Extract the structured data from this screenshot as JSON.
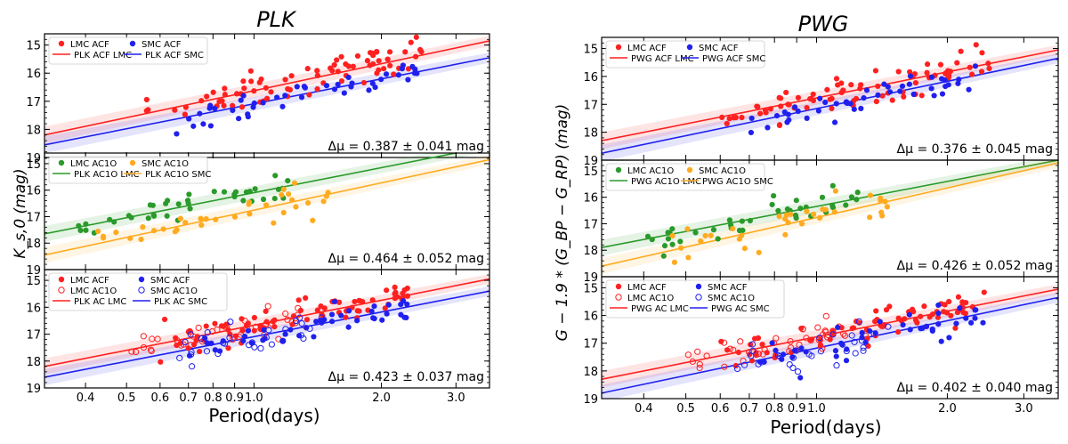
{
  "colors": {
    "lmc": "#ff2020",
    "smc": "#2020ee",
    "lmc_ac1o": "#2a9a2a",
    "smc_ac1o": "#ffab20"
  },
  "chart_data": [
    {
      "type": "scatter",
      "title": "PLK",
      "xlabel": "Period(days)",
      "ylabel": "K_s,0 (mag)",
      "x_scale": "log",
      "xlim": [
        0.32,
        3.6
      ],
      "x_ticks": [
        0.4,
        0.5,
        0.6,
        0.7,
        0.8,
        0.9,
        1.0,
        2.0,
        3.0
      ],
      "x_tick_labels": [
        "0.4",
        "0.5",
        "0.6",
        "0.7",
        "0.8",
        "0.9",
        "1.0",
        "2.0",
        "3.0"
      ],
      "panels": [
        {
          "ylim": [
            19,
            14.6
          ],
          "y_ticks": [
            15,
            16,
            17,
            18,
            19
          ],
          "delta_mu": "Δμ = 0.387 ± 0.041 mag",
          "legend": [
            {
              "label": "LMC ACF",
              "kind": "marker",
              "style": "filled",
              "color": "lmc"
            },
            {
              "label": "PLK ACF LMC",
              "kind": "line",
              "color": "lmc"
            },
            {
              "label": "SMC ACF",
              "kind": "marker",
              "style": "filled",
              "color": "smc"
            },
            {
              "label": "PLK ACF SMC",
              "kind": "line",
              "color": "smc"
            }
          ],
          "fits": [
            {
              "name": "PLK ACF LMC",
              "color": "lmc",
              "y_at_0.32": 18.2,
              "y_at_3.6": 14.85
            },
            {
              "name": "PLK ACF SMC",
              "color": "smc",
              "y_at_0.32": 18.55,
              "y_at_3.6": 15.45
            }
          ],
          "series": [
            {
              "name": "LMC ACF",
              "color": "lmc",
              "style": "filled",
              "n": 80,
              "x_range": [
                0.55,
                2.5
              ],
              "scatter_mag": 0.3,
              "fit": 0
            },
            {
              "name": "SMC ACF",
              "color": "smc",
              "style": "filled",
              "n": 45,
              "x_range": [
                0.65,
                2.45
              ],
              "scatter_mag": 0.25,
              "fit": 1
            }
          ]
        },
        {
          "ylim": [
            19,
            14.6
          ],
          "y_ticks": [
            15,
            16,
            17,
            18,
            19
          ],
          "delta_mu": "Δμ = 0.464 ± 0.052 mag",
          "legend": [
            {
              "label": "LMC AC1O",
              "kind": "marker",
              "style": "filled",
              "color": "lmc_ac1o"
            },
            {
              "label": "PLK AC1O LMC",
              "kind": "line",
              "color": "lmc_ac1o"
            },
            {
              "label": "SMC AC1O",
              "kind": "marker",
              "style": "filled",
              "color": "smc_ac1o"
            },
            {
              "label": "PLK AC1O SMC",
              "kind": "line",
              "color": "smc_ac1o"
            }
          ],
          "fits": [
            {
              "name": "PLK AC1O LMC",
              "color": "lmc_ac1o",
              "y_at_0.32": 17.65,
              "y_at_3.6": 14.35
            },
            {
              "name": "PLK AC1O SMC",
              "color": "smc_ac1o",
              "y_at_0.32": 18.45,
              "y_at_3.6": 14.85
            }
          ],
          "series": [
            {
              "name": "LMC AC1O",
              "color": "lmc_ac1o",
              "style": "filled",
              "n": 40,
              "x_range": [
                0.38,
                1.25
              ],
              "scatter_mag": 0.22,
              "fit": 0
            },
            {
              "name": "SMC AC1O",
              "color": "smc_ac1o",
              "style": "filled",
              "n": 35,
              "x_range": [
                0.42,
                1.5
              ],
              "scatter_mag": 0.3,
              "fit": 1
            }
          ]
        },
        {
          "ylim": [
            19,
            14.6
          ],
          "y_ticks": [
            15,
            16,
            17,
            18,
            19
          ],
          "delta_mu": "Δμ = 0.423 ± 0.037 mag",
          "legend": [
            {
              "label": "LMC ACF",
              "kind": "marker",
              "style": "filled",
              "color": "lmc"
            },
            {
              "label": "LMC AC1O",
              "kind": "marker",
              "style": "open",
              "color": "lmc"
            },
            {
              "label": "PLK AC LMC",
              "kind": "line",
              "color": "lmc"
            },
            {
              "label": "SMC ACF",
              "kind": "marker",
              "style": "filled",
              "color": "smc"
            },
            {
              "label": "SMC AC1O",
              "kind": "marker",
              "style": "open",
              "color": "smc"
            },
            {
              "label": "PLK AC SMC",
              "kind": "line",
              "color": "smc"
            }
          ],
          "fits": [
            {
              "name": "PLK AC LMC",
              "color": "lmc",
              "y_at_0.32": 18.2,
              "y_at_3.6": 14.95
            },
            {
              "name": "PLK AC SMC",
              "color": "smc",
              "y_at_0.32": 18.6,
              "y_at_3.6": 15.4
            }
          ],
          "series": [
            {
              "name": "LMC ACF",
              "color": "lmc",
              "style": "filled",
              "n": 80,
              "x_range": [
                0.6,
                2.5
              ],
              "scatter_mag": 0.25,
              "fit": 0
            },
            {
              "name": "LMC AC1O",
              "color": "lmc",
              "style": "open",
              "n": 40,
              "x_range": [
                0.5,
                1.3
              ],
              "scatter_mag": 0.25,
              "fit": 0
            },
            {
              "name": "SMC ACF",
              "color": "smc",
              "style": "filled",
              "n": 45,
              "x_range": [
                0.7,
                2.45
              ],
              "scatter_mag": 0.25,
              "fit": 1
            },
            {
              "name": "SMC AC1O",
              "color": "smc",
              "style": "open",
              "n": 30,
              "x_range": [
                0.65,
                1.5
              ],
              "scatter_mag": 0.3,
              "fit": 1
            }
          ]
        }
      ]
    },
    {
      "type": "scatter",
      "title": "PWG",
      "xlabel": "Period(days)",
      "ylabel": "G − 1.9 * (G_BP − G_RP) (mag)",
      "x_scale": "log",
      "xlim": [
        0.32,
        3.6
      ],
      "x_ticks": [
        0.4,
        0.5,
        0.6,
        0.7,
        0.8,
        0.9,
        1.0,
        2.0,
        3.0
      ],
      "x_tick_labels": [
        "0.4",
        "0.5",
        "0.6",
        "0.7",
        "0.8",
        "0.9",
        "1.0",
        "2.0",
        "3.0"
      ],
      "panels": [
        {
          "ylim": [
            19,
            14.6
          ],
          "y_ticks": [
            15,
            16,
            17,
            18,
            19
          ],
          "delta_mu": "Δμ = 0.376 ± 0.045 mag",
          "legend": [
            {
              "label": "LMC ACF",
              "kind": "marker",
              "style": "filled",
              "color": "lmc"
            },
            {
              "label": "PWG ACF LMC",
              "kind": "line",
              "color": "lmc"
            },
            {
              "label": "SMC ACF",
              "kind": "marker",
              "style": "filled",
              "color": "smc"
            },
            {
              "label": "PWG ACF SMC",
              "kind": "line",
              "color": "smc"
            }
          ],
          "fits": [
            {
              "name": "PWG ACF LMC",
              "color": "lmc",
              "y_at_0.32": 18.3,
              "y_at_3.6": 15.05
            },
            {
              "name": "PWG ACF SMC",
              "color": "smc",
              "y_at_0.32": 18.75,
              "y_at_3.6": 15.35
            }
          ],
          "series": [
            {
              "name": "LMC ACF",
              "color": "lmc",
              "style": "filled",
              "n": 80,
              "x_range": [
                0.6,
                2.5
              ],
              "scatter_mag": 0.3,
              "fit": 0
            },
            {
              "name": "SMC ACF",
              "color": "smc",
              "style": "filled",
              "n": 45,
              "x_range": [
                0.7,
                2.45
              ],
              "scatter_mag": 0.3,
              "fit": 1
            }
          ]
        },
        {
          "ylim": [
            19,
            14.6
          ],
          "y_ticks": [
            15,
            16,
            17,
            18,
            19
          ],
          "delta_mu": "Δμ = 0.426 ± 0.052 mag",
          "legend": [
            {
              "label": "LMC AC1O",
              "kind": "marker",
              "style": "filled",
              "color": "lmc_ac1o"
            },
            {
              "label": "PWG AC1O LMC",
              "kind": "line",
              "color": "lmc_ac1o"
            },
            {
              "label": "SMC AC1O",
              "kind": "marker",
              "style": "filled",
              "color": "smc_ac1o"
            },
            {
              "label": "PWG AC1O SMC",
              "kind": "line",
              "color": "smc_ac1o"
            }
          ],
          "fits": [
            {
              "name": "PWG AC1O LMC",
              "color": "lmc_ac1o",
              "y_at_0.32": 17.9,
              "y_at_3.6": 14.6
            },
            {
              "name": "PWG AC1O SMC",
              "color": "smc_ac1o",
              "y_at_0.32": 18.6,
              "y_at_3.6": 14.7
            }
          ],
          "series": [
            {
              "name": "LMC AC1O",
              "color": "lmc_ac1o",
              "style": "filled",
              "n": 40,
              "x_range": [
                0.38,
                1.25
              ],
              "scatter_mag": 0.25,
              "fit": 0
            },
            {
              "name": "SMC AC1O",
              "color": "smc_ac1o",
              "style": "filled",
              "n": 35,
              "x_range": [
                0.45,
                1.5
              ],
              "scatter_mag": 0.35,
              "fit": 1
            }
          ]
        },
        {
          "ylim": [
            19,
            14.6
          ],
          "y_ticks": [
            15,
            16,
            17,
            18,
            19
          ],
          "delta_mu": "Δμ = 0.402 ± 0.040 mag",
          "legend": [
            {
              "label": "LMC ACF",
              "kind": "marker",
              "style": "filled",
              "color": "lmc"
            },
            {
              "label": "LMC AC1O",
              "kind": "marker",
              "style": "open",
              "color": "lmc"
            },
            {
              "label": "PWG AC LMC",
              "kind": "line",
              "color": "lmc"
            },
            {
              "label": "SMC ACF",
              "kind": "marker",
              "style": "filled",
              "color": "smc"
            },
            {
              "label": "SMC AC1O",
              "kind": "marker",
              "style": "open",
              "color": "smc"
            },
            {
              "label": "PWG AC SMC",
              "kind": "line",
              "color": "smc"
            }
          ],
          "fits": [
            {
              "name": "PWG AC LMC",
              "color": "lmc",
              "y_at_0.32": 18.3,
              "y_at_3.6": 15.05
            },
            {
              "name": "PWG AC SMC",
              "color": "smc",
              "y_at_0.32": 18.8,
              "y_at_3.6": 15.35
            }
          ],
          "series": [
            {
              "name": "LMC ACF",
              "color": "lmc",
              "style": "filled",
              "n": 80,
              "x_range": [
                0.6,
                2.5
              ],
              "scatter_mag": 0.28,
              "fit": 0
            },
            {
              "name": "LMC AC1O",
              "color": "lmc",
              "style": "open",
              "n": 40,
              "x_range": [
                0.5,
                1.3
              ],
              "scatter_mag": 0.28,
              "fit": 0
            },
            {
              "name": "SMC ACF",
              "color": "smc",
              "style": "filled",
              "n": 45,
              "x_range": [
                0.7,
                2.45
              ],
              "scatter_mag": 0.3,
              "fit": 1
            },
            {
              "name": "SMC AC1O",
              "color": "smc",
              "style": "open",
              "n": 30,
              "x_range": [
                0.65,
                1.5
              ],
              "scatter_mag": 0.35,
              "fit": 1
            }
          ]
        }
      ]
    }
  ]
}
